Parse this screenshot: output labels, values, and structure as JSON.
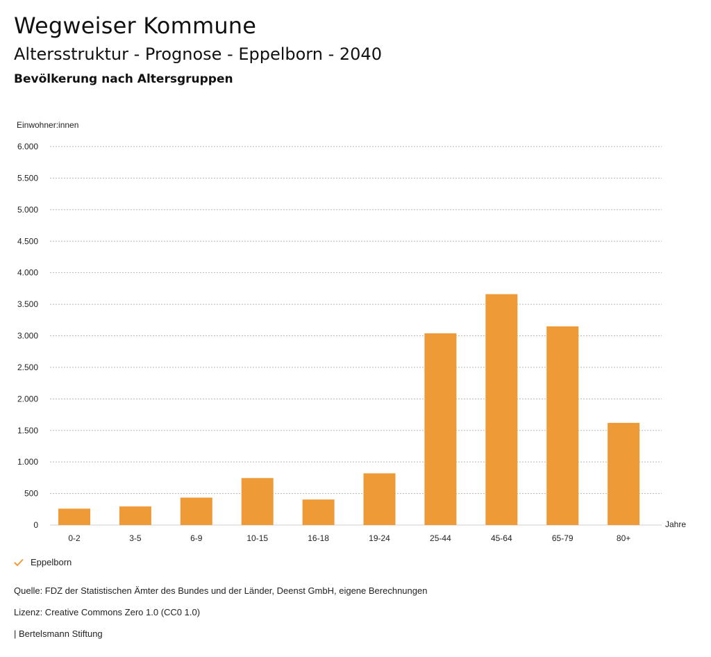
{
  "header": {
    "title": "Wegweiser Kommune",
    "subtitle": "Altersstruktur - Prognose - Eppelborn - 2040",
    "chart_heading": "Bevölkerung nach Altersgruppen"
  },
  "chart_data": {
    "type": "bar",
    "ylabel": "Einwohner:innen",
    "xlabel": "Jahre",
    "ylim": [
      0,
      6000
    ],
    "yticks": [
      0,
      500,
      1000,
      1500,
      2000,
      2500,
      3000,
      3500,
      4000,
      4500,
      5000,
      5500,
      6000
    ],
    "ytick_labels": [
      "0",
      "500",
      "1.000",
      "1.500",
      "2.000",
      "2.500",
      "3.000",
      "3.500",
      "4.000",
      "4.500",
      "5.000",
      "5.500",
      "6.000"
    ],
    "categories": [
      "0-2",
      "3-5",
      "6-9",
      "10-15",
      "16-18",
      "19-24",
      "25-44",
      "45-64",
      "65-79",
      "80+"
    ],
    "series": [
      {
        "name": "Eppelborn",
        "values": [
          260,
          295,
          435,
          745,
          405,
          820,
          3040,
          3660,
          3150,
          1620
        ]
      }
    ],
    "grid": true,
    "legend_position": "bottom-left"
  },
  "colors": {
    "bar": "#ee9a37",
    "grid": "#b5b5b5",
    "check": "#ee9a37"
  },
  "legend": {
    "label": "Eppelborn",
    "icon": "check-icon"
  },
  "footer": {
    "source": "Quelle: FDZ der Statistischen Ämter des Bundes und der Länder, Deenst GmbH, eigene Berechnungen",
    "license": "Lizenz: Creative Commons Zero 1.0 (CC0 1.0)",
    "publisher": "| Bertelsmann Stiftung"
  }
}
